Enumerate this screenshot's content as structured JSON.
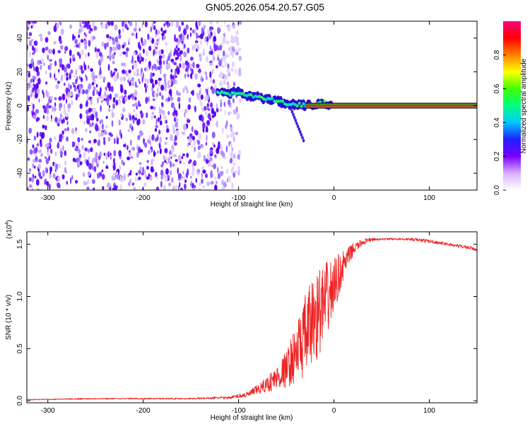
{
  "title": "GN05.2026.054.20.57.G05",
  "colors": {
    "snr_line": "#ee2222",
    "frame": "#000000",
    "carrier_core": "#ff1a4a",
    "carrier_edge": "#00c800",
    "speckle": "#5500ee"
  },
  "colormap_stops": [
    "#ffffff",
    "#d8b0ff",
    "#7a00ff",
    "#2020ff",
    "#00c8ff",
    "#00ff7f",
    "#40ff00",
    "#ffff00",
    "#ff8000",
    "#ff0000",
    "#ff0080"
  ],
  "chart_data": [
    {
      "type": "heatmap",
      "xlabel": "Height of straight line (km)",
      "ylabel": "Frequency (Hz)",
      "xlim": [
        -322,
        150
      ],
      "ylim": [
        -50,
        50
      ],
      "xticks": [
        -300,
        -200,
        -100,
        0,
        100
      ],
      "yticks": [
        40,
        20,
        0,
        -20,
        -40
      ],
      "xtick_labels": [
        "-300",
        "-200",
        "-100",
        "0",
        "100"
      ],
      "ytick_labels": [
        "40",
        "20",
        "0",
        "-20",
        "-40"
      ],
      "noise_region_x": [
        -322,
        -110
      ],
      "carrier_track": {
        "x": [
          -122,
          -110,
          -100,
          -90,
          -80,
          -70,
          -60,
          -50,
          -40,
          -30,
          -20,
          -10,
          -5,
          0,
          150
        ],
        "y": [
          8,
          7,
          8,
          6,
          5,
          4,
          3,
          1,
          1,
          0,
          0,
          2,
          0,
          0,
          0
        ]
      },
      "colorbar": {
        "label": "Normalized spectral amplitude",
        "range": [
          0,
          1
        ],
        "ticks": [
          0.0,
          0.2,
          0.4,
          0.6,
          0.8
        ],
        "tick_labels": [
          "0.0",
          "0.2",
          "0.4",
          "0.6",
          "0.8"
        ]
      }
    },
    {
      "type": "line",
      "xlabel": "Height of straight line (km)",
      "ylabel": "SNR (10 * v/v)",
      "scale_label": "(x10",
      "scale_exponent": "4",
      "xlim": [
        -322,
        150
      ],
      "ylim": [
        -0.02,
        1.62
      ],
      "xticks": [
        -300,
        -200,
        -100,
        0,
        100
      ],
      "yticks": [
        0.0,
        0.5,
        1.0,
        1.5
      ],
      "xtick_labels": [
        "-300",
        "-200",
        "-100",
        "0",
        "100"
      ],
      "ytick_labels": [
        "0.0",
        "0.5",
        "1.0",
        "1.5"
      ],
      "series": [
        {
          "name": "SNR",
          "x": [
            -322,
            -250,
            -150,
            -110,
            -90,
            -75,
            -60,
            -50,
            -40,
            -30,
            -20,
            -10,
            0,
            10,
            20,
            30,
            40,
            60,
            80,
            100,
            120,
            140,
            150
          ],
          "y": [
            0.01,
            0.02,
            0.02,
            0.03,
            0.06,
            0.13,
            0.22,
            0.3,
            0.45,
            0.62,
            0.8,
            0.92,
            1.1,
            1.3,
            1.45,
            1.52,
            1.55,
            1.56,
            1.55,
            1.53,
            1.5,
            1.47,
            1.45
          ],
          "noise_amplitude": [
            0.004,
            0.005,
            0.006,
            0.01,
            0.03,
            0.06,
            0.12,
            0.18,
            0.28,
            0.4,
            0.45,
            0.4,
            0.28,
            0.14,
            0.06,
            0.03,
            0.02,
            0.015,
            0.015,
            0.015,
            0.015,
            0.015,
            0.015
          ]
        }
      ]
    }
  ]
}
